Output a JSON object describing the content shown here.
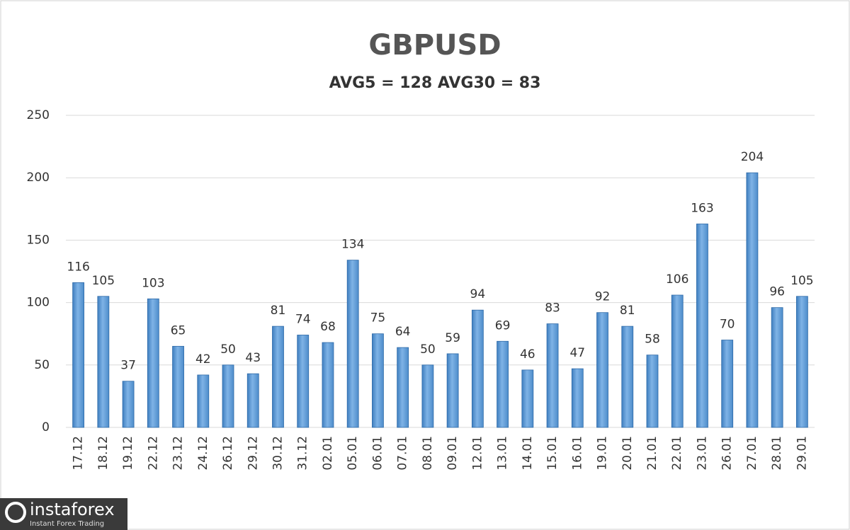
{
  "chart_data": {
    "type": "bar",
    "title": "GBPUSD",
    "subtitle": "AVG5 = 128 AVG30 = 83",
    "categories": [
      "17.12",
      "18.12",
      "19.12",
      "22.12",
      "23.12",
      "24.12",
      "26.12",
      "29.12",
      "30.12",
      "31.12",
      "02.01",
      "05.01",
      "06.01",
      "07.01",
      "08.01",
      "09.01",
      "12.01",
      "13.01",
      "14.01",
      "15.01",
      "16.01",
      "19.01",
      "20.01",
      "21.01",
      "22.01",
      "23.01",
      "26.01",
      "27.01",
      "28.01",
      "29.01"
    ],
    "values": [
      116,
      105,
      37,
      103,
      65,
      42,
      50,
      43,
      81,
      74,
      68,
      134,
      75,
      64,
      50,
      59,
      94,
      69,
      46,
      83,
      47,
      92,
      81,
      58,
      106,
      163,
      70,
      204,
      96,
      105
    ],
    "color": "#5b9bd5",
    "ylim": [
      0,
      250
    ],
    "yticks": [
      0,
      50,
      100,
      150,
      200,
      250
    ],
    "grid": true
  },
  "watermark": {
    "brand": "instaforex",
    "tagline": "Instant Forex Trading"
  }
}
